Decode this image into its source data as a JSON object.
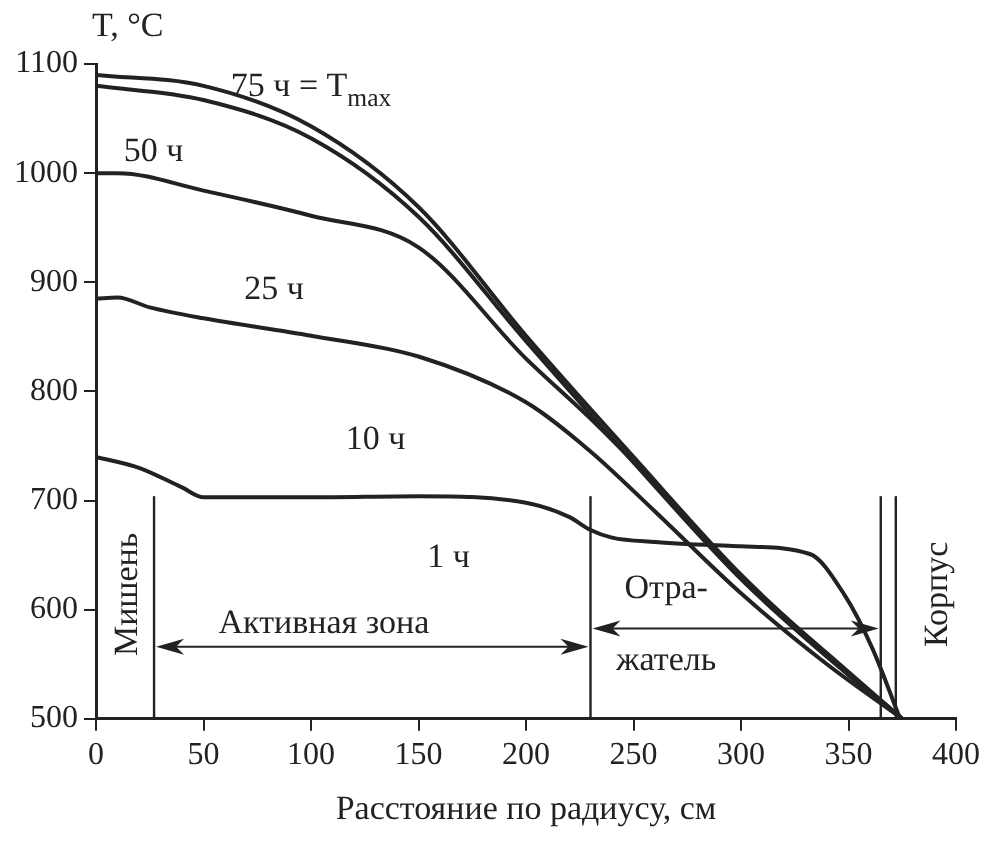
{
  "chart_data": {
    "type": "line",
    "xlabel": "Расстояние по радиусу, см",
    "ylabel": "T, °C",
    "xlim": [
      0,
      400
    ],
    "xticks": [
      0,
      50,
      100,
      150,
      200,
      250,
      300,
      350,
      400
    ],
    "ylim": [
      500,
      1100
    ],
    "yticks": [
      500,
      600,
      700,
      800,
      900,
      1000,
      1100
    ],
    "marker": "none",
    "line_style": "solid",
    "legend": false,
    "series": [
      {
        "color": "#222222",
        "x": [
          0,
          20,
          40,
          50,
          100,
          150,
          200,
          220,
          230,
          240,
          260,
          300,
          332,
          348,
          361,
          374
        ],
        "values": [
          740,
          730,
          712,
          703,
          703,
          704,
          698,
          685,
          673,
          666,
          662,
          658,
          651,
          614,
          565,
          500
        ]
      },
      {
        "color": "#222222",
        "x": [
          0,
          10,
          25,
          50,
          100,
          150,
          200,
          230,
          260,
          300,
          340,
          375
        ],
        "values": [
          885,
          886,
          877,
          867,
          851,
          832,
          790,
          745,
          690,
          615,
          550,
          500
        ]
      },
      {
        "color": "#222222",
        "x": [
          0,
          10,
          50,
          100,
          150,
          200,
          230,
          260,
          300,
          340,
          375
        ],
        "values": [
          1000,
          1000,
          984,
          961,
          932,
          830,
          775,
          715,
          630,
          560,
          500
        ]
      },
      {
        "color": "#222222",
        "x": [
          0,
          50,
          100,
          150,
          200,
          250,
          300,
          350,
          375
        ],
        "values": [
          1080,
          1067,
          1032,
          960,
          846,
          735,
          628,
          540,
          500
        ]
      },
      {
        "color": "#222222",
        "x": [
          0,
          50,
          100,
          150,
          200,
          250,
          300,
          350,
          375
        ],
        "values": [
          1090,
          1080,
          1043,
          969,
          851,
          740,
          632,
          542,
          500
        ]
      }
    ],
    "ref_lines": [
      {
        "axis": "x",
        "value": 27
      },
      {
        "axis": "x",
        "value": 230
      },
      {
        "axis": "x",
        "value": 365
      },
      {
        "axis": "x",
        "value": 372
      }
    ],
    "annotations": [
      "75 ч = T$_{max}$",
      "50 ч",
      "25 ч",
      "10 ч",
      "1 ч",
      "Мишень",
      "Активная зона",
      "Отра-\nжатель",
      "Корпус"
    ]
  }
}
